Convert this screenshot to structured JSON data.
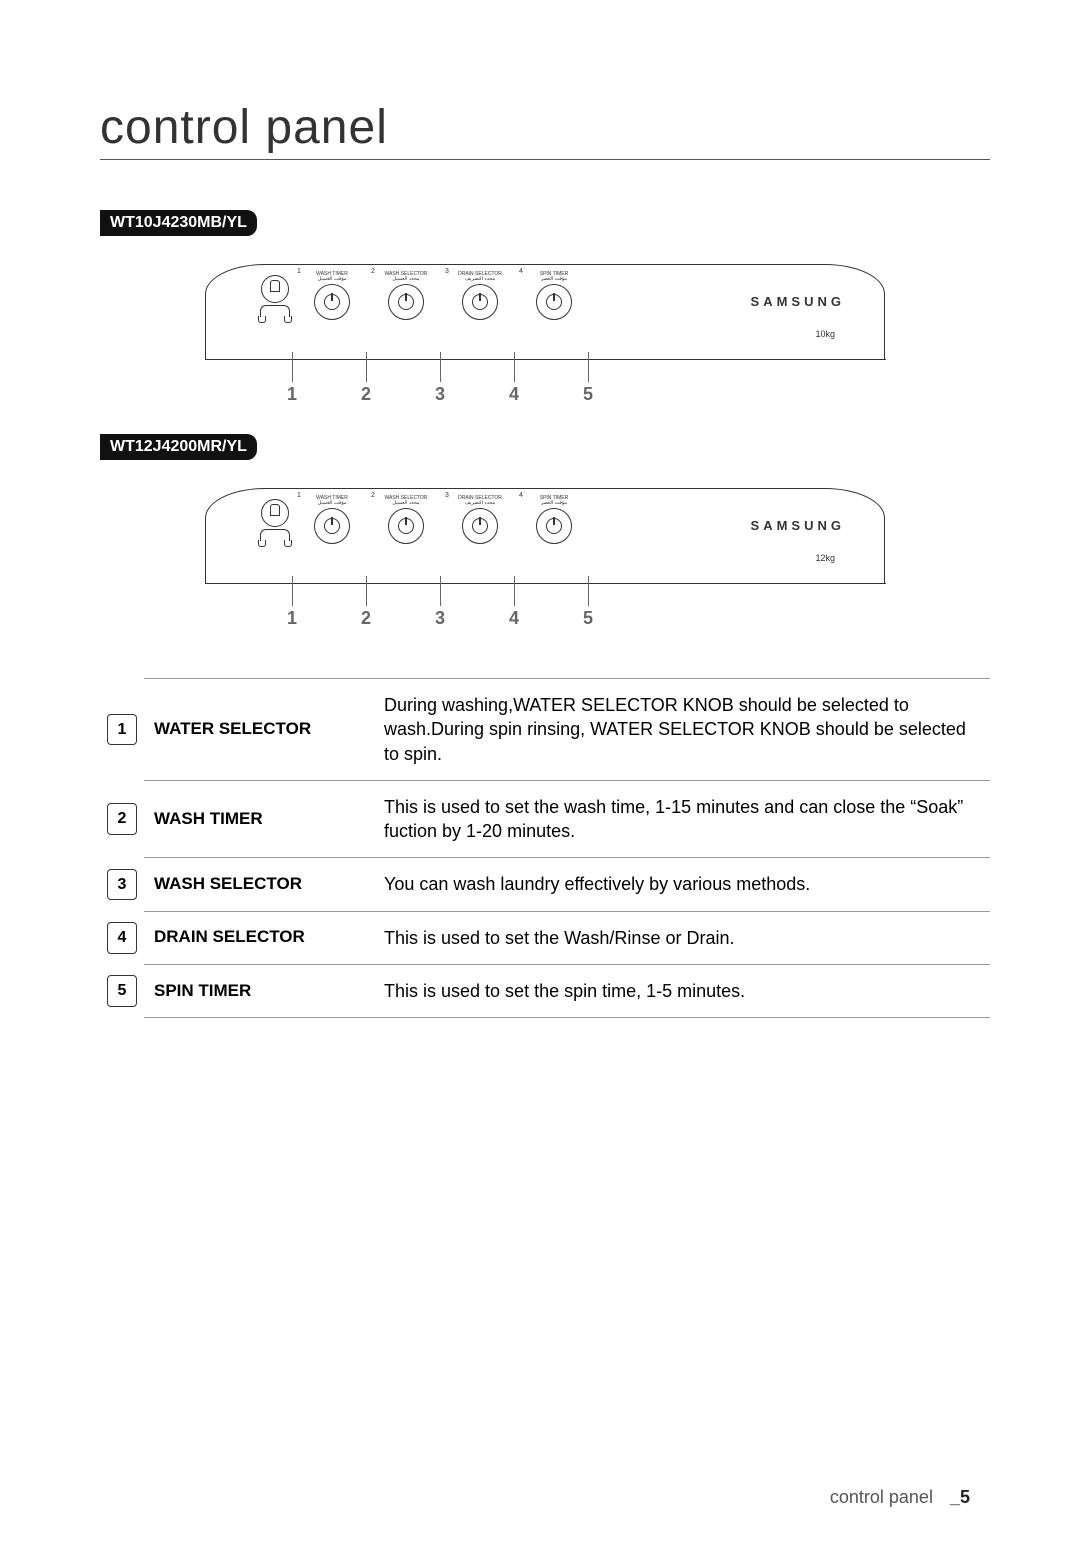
{
  "page": {
    "title": "control panel",
    "footer_text": "control panel",
    "footer_page": "_5"
  },
  "models": [
    {
      "id": "WT10J4230MB/YL",
      "brand": "SAMSUNG",
      "capacity": "10kg",
      "knobs": [
        {
          "num": "1",
          "label": "WASH TIMER",
          "sub": "مؤقت الغسيل"
        },
        {
          "num": "2",
          "label": "WASH SELECTOR",
          "sub": "محدد الغسيل"
        },
        {
          "num": "3",
          "label": "DRAIN SELECTOR",
          "sub": "محدد التصريف"
        },
        {
          "num": "4",
          "label": "SPIN TIMER",
          "sub": "مؤقت العصر"
        }
      ],
      "callouts": [
        "1",
        "2",
        "3",
        "4",
        "5"
      ]
    },
    {
      "id": "WT12J4200MR/YL",
      "brand": "SAMSUNG",
      "capacity": "12kg",
      "knobs": [
        {
          "num": "1",
          "label": "WASH TIMER",
          "sub": "مؤقت الغسيل"
        },
        {
          "num": "2",
          "label": "WASH SELECTOR",
          "sub": "محدد الغسيل"
        },
        {
          "num": "3",
          "label": "DRAIN SELECTOR",
          "sub": "محدد التصريف"
        },
        {
          "num": "4",
          "label": "SPIN TIMER",
          "sub": "مؤقت العصر"
        }
      ],
      "callouts": [
        "1",
        "2",
        "3",
        "4",
        "5"
      ]
    }
  ],
  "legend": [
    {
      "num": "1",
      "name": "WATER SELECTOR",
      "desc": "During washing,WATER SELECTOR KNOB should be selected to wash.During spin rinsing, WATER SELECTOR KNOB should be selected to spin."
    },
    {
      "num": "2",
      "name": "WASH TIMER",
      "desc": "This is used to set the wash time, 1-15 minutes and can close the “Soak” fuction by 1-20 minutes."
    },
    {
      "num": "3",
      "name": "WASH SELECTOR",
      "desc": "You can wash laundry effectively by various methods."
    },
    {
      "num": "4",
      "name": "DRAIN SELECTOR",
      "desc": "This is used to set the Wash/Rinse or Drain."
    },
    {
      "num": "5",
      "name": "SPIN TIMER",
      "desc": "This is used to set the spin time, 1-5 minutes."
    }
  ]
}
